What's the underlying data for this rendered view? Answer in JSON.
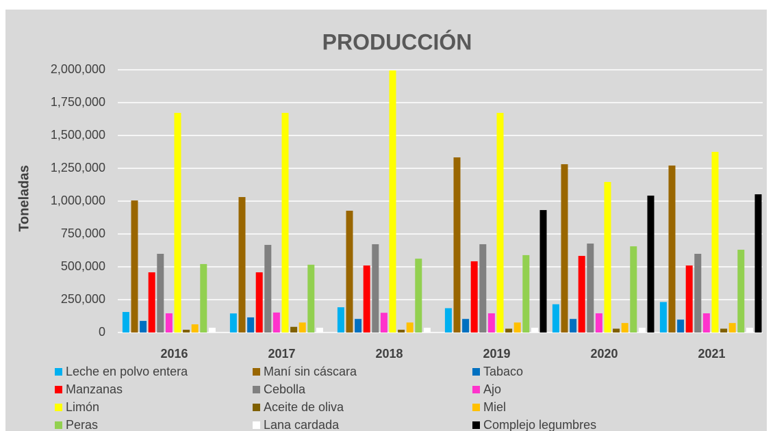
{
  "chart_data": {
    "type": "bar",
    "title": "PRODUCCIÓN",
    "y_label": "Toneladas",
    "categories": [
      "2016",
      "2017",
      "2018",
      "2019",
      "2020",
      "2021"
    ],
    "series": [
      {
        "name": "Leche en polvo entera",
        "color": "#00b0f0",
        "values": [
          156000,
          145000,
          192000,
          185000,
          215000,
          232000
        ]
      },
      {
        "name": "Maní sin cáscara",
        "color": "#996600",
        "values": [
          1005000,
          1031000,
          927000,
          1333000,
          1281000,
          1271000
        ]
      },
      {
        "name": "Tabaco",
        "color": "#0070c0",
        "values": [
          88000,
          115000,
          103000,
          103000,
          103000,
          98000
        ]
      },
      {
        "name": "Manzanas",
        "color": "#ff0000",
        "values": [
          458000,
          458000,
          510000,
          542000,
          583000,
          510000
        ]
      },
      {
        "name": "Cebolla",
        "color": "#808080",
        "values": [
          599000,
          667000,
          672000,
          672000,
          677000,
          599000
        ]
      },
      {
        "name": "Ajo",
        "color": "#ff33cc",
        "values": [
          146000,
          152000,
          150000,
          146000,
          146000,
          146000
        ]
      },
      {
        "name": "Limón",
        "color": "#ffff00",
        "values": [
          1672000,
          1672000,
          1995000,
          1672000,
          1146000,
          1375000
        ]
      },
      {
        "name": "Aceite de oliva",
        "color": "#7f6000",
        "values": [
          21000,
          43000,
          21000,
          29000,
          29000,
          29000
        ]
      },
      {
        "name": "Miel",
        "color": "#ffc000",
        "values": [
          62000,
          76000,
          76000,
          76000,
          72000,
          72000
        ]
      },
      {
        "name": "Peras",
        "color": "#92d050",
        "values": [
          521000,
          516000,
          562000,
          589000,
          656000,
          630000
        ]
      },
      {
        "name": "Lana cardada",
        "color": "#ffffff",
        "values": [
          36000,
          36000,
          36000,
          36000,
          36000,
          36000
        ]
      },
      {
        "name": "Complejo legumbres",
        "color": "#000000",
        "values": [
          null,
          null,
          null,
          932000,
          1042000,
          1052000
        ]
      }
    ],
    "ylim": [
      0,
      2000000
    ],
    "yticks": [
      0,
      {
        "value": 250000,
        "label": "250,000"
      },
      {
        "value": 500000,
        "label": "500,000"
      },
      {
        "value": 750000,
        "label": "750,000"
      },
      {
        "value": 1000000,
        "label": "1,000,000"
      },
      {
        "value": 1250000,
        "label": "1,250,000"
      },
      {
        "value": 1500000,
        "label": "1,500,000"
      },
      {
        "value": 1750000,
        "label": "1,750,000"
      },
      {
        "value": 2000000,
        "label": "2,000,000"
      }
    ],
    "grid": true
  }
}
